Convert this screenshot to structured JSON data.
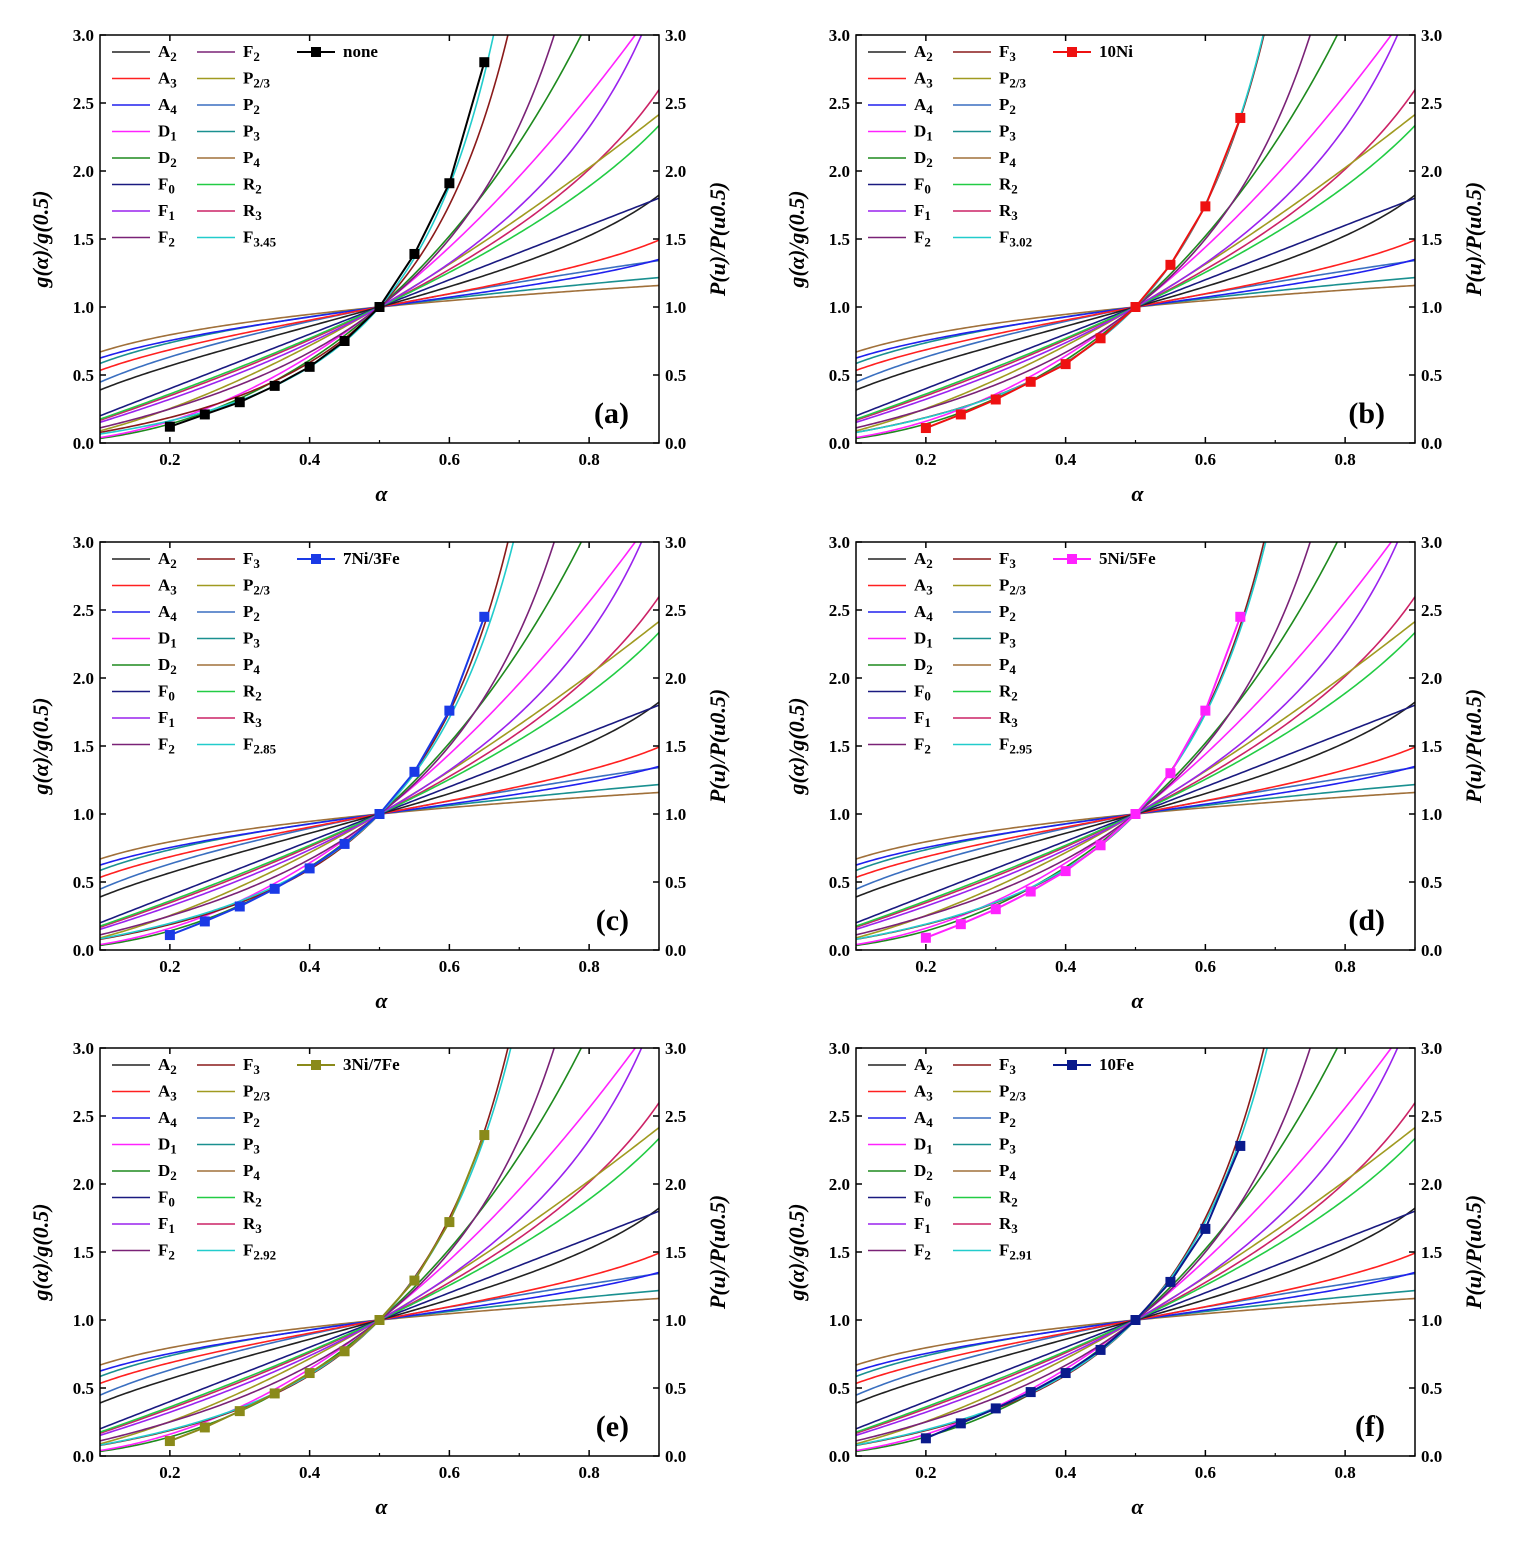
{
  "figure": {
    "xlabel": "α",
    "ylabel_left": "g(α)/g(0.5)",
    "ylabel_right": "P(u)/P(u0.5)",
    "xlim": [
      0.1,
      0.9
    ],
    "ylim": [
      0.0,
      3.0
    ],
    "xticks": [
      "0.2",
      "0.4",
      "0.6",
      "0.8"
    ],
    "xtick_values": [
      0.2,
      0.4,
      0.6,
      0.8
    ],
    "yticks": [
      "0.0",
      "0.5",
      "1.0",
      "1.5",
      "2.0",
      "2.5",
      "3.0"
    ],
    "ytick_values": [
      0.0,
      0.5,
      1.0,
      1.5,
      2.0,
      2.5,
      3.0
    ]
  },
  "models": [
    {
      "key": "A2",
      "base": "A",
      "sub": "2",
      "color": "#222222"
    },
    {
      "key": "A3",
      "base": "A",
      "sub": "3",
      "color": "#ff2020"
    },
    {
      "key": "A4",
      "base": "A",
      "sub": "4",
      "color": "#2020ee"
    },
    {
      "key": "D1",
      "base": "D",
      "sub": "1",
      "color": "#ff22ff"
    },
    {
      "key": "D2",
      "base": "D",
      "sub": "2",
      "color": "#1e8a1e"
    },
    {
      "key": "F0",
      "base": "F",
      "sub": "0",
      "color": "#1a1a80"
    },
    {
      "key": "F1",
      "base": "F",
      "sub": "1",
      "color": "#9a22ee"
    },
    {
      "key": "F2",
      "base": "F",
      "sub": "2",
      "color": "#7a2277"
    },
    {
      "key": "F3",
      "base": "F",
      "sub": "3",
      "color": "#8a1a1a"
    },
    {
      "key": "P2/3",
      "base": "P",
      "sub": "2/3",
      "color": "#a09a20"
    },
    {
      "key": "P2",
      "base": "P",
      "sub": "2",
      "color": "#3a6fc0"
    },
    {
      "key": "P3",
      "base": "P",
      "sub": "3",
      "color": "#1a9090"
    },
    {
      "key": "P4",
      "base": "P",
      "sub": "4",
      "color": "#a0703a"
    },
    {
      "key": "R2",
      "base": "R",
      "sub": "2",
      "color": "#22cc44"
    },
    {
      "key": "R3",
      "base": "R",
      "sub": "3",
      "color": "#cc2266"
    },
    {
      "key": "Fn",
      "base": "F",
      "sub": "n",
      "color": "#22cccc"
    }
  ],
  "chart_data": [
    {
      "type": "line",
      "panel_label": "(a)",
      "sample": "none",
      "sample_color": "#000000",
      "legend_top_middle": {
        "base": "F",
        "sub": "2"
      },
      "fitted_order_label": {
        "base": "F",
        "sub": "3.45"
      },
      "fitted_order": 3.45,
      "x": [
        0.2,
        0.25,
        0.3,
        0.35,
        0.4,
        0.45,
        0.5,
        0.55,
        0.6,
        0.65
      ],
      "y": [
        0.12,
        0.21,
        0.3,
        0.42,
        0.56,
        0.75,
        1.0,
        1.39,
        1.91,
        2.8
      ]
    },
    {
      "type": "line",
      "panel_label": "(b)",
      "sample": "10Ni",
      "sample_color": "#ee1111",
      "legend_top_middle": {
        "base": "F",
        "sub": "3"
      },
      "fitted_order_label": {
        "base": "F",
        "sub": "3.02"
      },
      "fitted_order": 3.02,
      "x": [
        0.2,
        0.25,
        0.3,
        0.35,
        0.4,
        0.45,
        0.5,
        0.55,
        0.6,
        0.65
      ],
      "y": [
        0.11,
        0.21,
        0.32,
        0.45,
        0.58,
        0.77,
        1.0,
        1.31,
        1.74,
        2.39
      ]
    },
    {
      "type": "line",
      "panel_label": "(c)",
      "sample": "7Ni/3Fe",
      "sample_color": "#1a3ae6",
      "legend_top_middle": {
        "base": "F",
        "sub": "3"
      },
      "fitted_order_label": {
        "base": "F",
        "sub": "2.85"
      },
      "fitted_order": 2.85,
      "x": [
        0.2,
        0.25,
        0.3,
        0.35,
        0.4,
        0.45,
        0.5,
        0.55,
        0.6,
        0.65
      ],
      "y": [
        0.11,
        0.21,
        0.32,
        0.45,
        0.6,
        0.78,
        1.0,
        1.31,
        1.76,
        2.45
      ]
    },
    {
      "type": "line",
      "panel_label": "(d)",
      "sample": "5Ni/5Fe",
      "sample_color": "#ff22ff",
      "legend_top_middle": {
        "base": "F",
        "sub": "3"
      },
      "fitted_order_label": {
        "base": "F",
        "sub": "2.95"
      },
      "fitted_order": 2.95,
      "x": [
        0.2,
        0.25,
        0.3,
        0.35,
        0.4,
        0.45,
        0.5,
        0.55,
        0.6,
        0.65
      ],
      "y": [
        0.09,
        0.19,
        0.3,
        0.43,
        0.58,
        0.77,
        1.0,
        1.3,
        1.76,
        2.45
      ]
    },
    {
      "type": "line",
      "panel_label": "(e)",
      "sample": "3Ni/7Fe",
      "sample_color": "#8a8a1a",
      "legend_top_middle": {
        "base": "F",
        "sub": "3"
      },
      "fitted_order_label": {
        "base": "F",
        "sub": "2.92"
      },
      "fitted_order": 2.92,
      "x": [
        0.2,
        0.25,
        0.3,
        0.35,
        0.4,
        0.45,
        0.5,
        0.55,
        0.6,
        0.65
      ],
      "y": [
        0.11,
        0.21,
        0.33,
        0.46,
        0.61,
        0.77,
        1.0,
        1.29,
        1.72,
        2.36
      ]
    },
    {
      "type": "line",
      "panel_label": "(f)",
      "sample": "10Fe",
      "sample_color": "#0a1a8c",
      "legend_top_middle": {
        "base": "F",
        "sub": "3"
      },
      "fitted_order_label": {
        "base": "F",
        "sub": "2.91"
      },
      "fitted_order": 2.91,
      "x": [
        0.2,
        0.25,
        0.3,
        0.35,
        0.4,
        0.45,
        0.5,
        0.55,
        0.6,
        0.65
      ],
      "y": [
        0.13,
        0.24,
        0.35,
        0.47,
        0.61,
        0.78,
        1.0,
        1.28,
        1.67,
        2.28
      ]
    }
  ]
}
